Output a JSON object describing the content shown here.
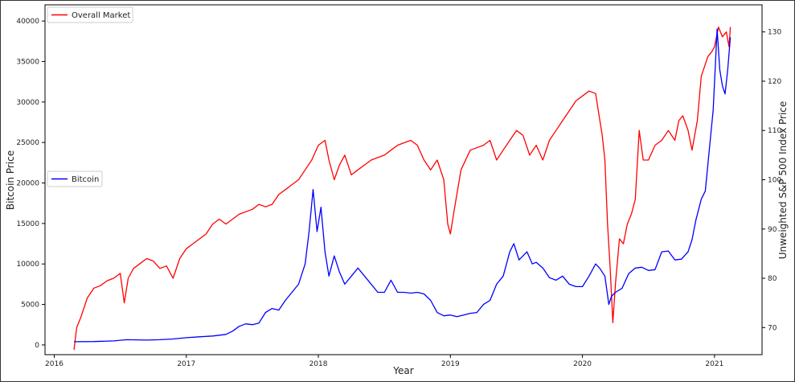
{
  "chart_data": {
    "type": "line",
    "title": "",
    "xlabel": "Year",
    "ylabel_left": "Bitcoin Price",
    "ylabel_right": "Unweighted S&P 500 Index Price",
    "xlim": [
      2015.93,
      2021.36
    ],
    "ylim_left": [
      -1200,
      42000
    ],
    "ylim_right": [
      64.5,
      135.5
    ],
    "x_ticks": [
      2016,
      2017,
      2018,
      2019,
      2020,
      2021
    ],
    "x_tick_labels": [
      "2016",
      "2017",
      "2018",
      "2019",
      "2020",
      "2021"
    ],
    "y_left_ticks": [
      0,
      5000,
      10000,
      15000,
      20000,
      25000,
      30000,
      35000,
      40000
    ],
    "y_left_tick_labels": [
      "0",
      "5000",
      "10000",
      "15000",
      "20000",
      "25000",
      "30000",
      "35000",
      "40000"
    ],
    "y_right_ticks": [
      70,
      80,
      90,
      100,
      110,
      120,
      130
    ],
    "y_right_tick_labels": [
      "70",
      "80",
      "90",
      "100",
      "110",
      "120",
      "130"
    ],
    "grid": false,
    "series": [
      {
        "name": "Overall Market",
        "axis": "right",
        "color": "#ff0000",
        "points": [
          [
            2016.15,
            65.5
          ],
          [
            2016.17,
            70
          ],
          [
            2016.2,
            72
          ],
          [
            2016.25,
            76
          ],
          [
            2016.3,
            78
          ],
          [
            2016.35,
            78.5
          ],
          [
            2016.4,
            79.5
          ],
          [
            2016.45,
            80
          ],
          [
            2016.5,
            81
          ],
          [
            2016.53,
            75
          ],
          [
            2016.56,
            80
          ],
          [
            2016.6,
            82
          ],
          [
            2016.65,
            83
          ],
          [
            2016.7,
            84
          ],
          [
            2016.75,
            83.5
          ],
          [
            2016.8,
            82
          ],
          [
            2016.85,
            82.5
          ],
          [
            2016.9,
            80
          ],
          [
            2016.95,
            84
          ],
          [
            2017.0,
            86
          ],
          [
            2017.05,
            87
          ],
          [
            2017.1,
            88
          ],
          [
            2017.15,
            89
          ],
          [
            2017.2,
            91
          ],
          [
            2017.25,
            92
          ],
          [
            2017.3,
            91
          ],
          [
            2017.35,
            92
          ],
          [
            2017.4,
            93
          ],
          [
            2017.45,
            93.5
          ],
          [
            2017.5,
            94
          ],
          [
            2017.55,
            95
          ],
          [
            2017.6,
            94.5
          ],
          [
            2017.65,
            95
          ],
          [
            2017.7,
            97
          ],
          [
            2017.75,
            98
          ],
          [
            2017.8,
            99
          ],
          [
            2017.85,
            100
          ],
          [
            2017.9,
            102
          ],
          [
            2017.95,
            104
          ],
          [
            2018.0,
            107
          ],
          [
            2018.05,
            108
          ],
          [
            2018.08,
            104
          ],
          [
            2018.12,
            100
          ],
          [
            2018.16,
            103
          ],
          [
            2018.2,
            105
          ],
          [
            2018.25,
            101
          ],
          [
            2018.3,
            102
          ],
          [
            2018.35,
            103
          ],
          [
            2018.4,
            104
          ],
          [
            2018.45,
            104.5
          ],
          [
            2018.5,
            105
          ],
          [
            2018.55,
            106
          ],
          [
            2018.6,
            107
          ],
          [
            2018.65,
            107.5
          ],
          [
            2018.7,
            108
          ],
          [
            2018.75,
            107
          ],
          [
            2018.8,
            104
          ],
          [
            2018.85,
            102
          ],
          [
            2018.9,
            104
          ],
          [
            2018.95,
            100
          ],
          [
            2018.98,
            91
          ],
          [
            2019.0,
            89
          ],
          [
            2019.03,
            94
          ],
          [
            2019.08,
            102
          ],
          [
            2019.15,
            106
          ],
          [
            2019.2,
            106.5
          ],
          [
            2019.25,
            107
          ],
          [
            2019.3,
            108
          ],
          [
            2019.35,
            104
          ],
          [
            2019.4,
            106
          ],
          [
            2019.45,
            108
          ],
          [
            2019.5,
            110
          ],
          [
            2019.55,
            109
          ],
          [
            2019.6,
            105
          ],
          [
            2019.65,
            107
          ],
          [
            2019.7,
            104
          ],
          [
            2019.75,
            108
          ],
          [
            2019.8,
            110
          ],
          [
            2019.85,
            112
          ],
          [
            2019.9,
            114
          ],
          [
            2019.95,
            116
          ],
          [
            2020.0,
            117
          ],
          [
            2020.05,
            118
          ],
          [
            2020.1,
            117.5
          ],
          [
            2020.12,
            114
          ],
          [
            2020.15,
            109
          ],
          [
            2020.17,
            104
          ],
          [
            2020.19,
            91
          ],
          [
            2020.21,
            82
          ],
          [
            2020.23,
            71
          ],
          [
            2020.25,
            79
          ],
          [
            2020.28,
            88
          ],
          [
            2020.31,
            87
          ],
          [
            2020.34,
            91
          ],
          [
            2020.37,
            93
          ],
          [
            2020.4,
            96
          ],
          [
            2020.43,
            110
          ],
          [
            2020.46,
            104
          ],
          [
            2020.5,
            104
          ],
          [
            2020.55,
            107
          ],
          [
            2020.6,
            108
          ],
          [
            2020.65,
            110
          ],
          [
            2020.7,
            108
          ],
          [
            2020.73,
            112
          ],
          [
            2020.76,
            113
          ],
          [
            2020.8,
            110
          ],
          [
            2020.83,
            106
          ],
          [
            2020.87,
            112
          ],
          [
            2020.9,
            121
          ],
          [
            2020.95,
            125
          ],
          [
            2020.98,
            126
          ],
          [
            2021.0,
            127
          ],
          [
            2021.03,
            131
          ],
          [
            2021.06,
            129
          ],
          [
            2021.09,
            130
          ],
          [
            2021.11,
            127
          ],
          [
            2021.12,
            131
          ]
        ]
      },
      {
        "name": "Bitcoin",
        "axis": "left",
        "color": "#0000ff",
        "points": [
          [
            2016.15,
            400
          ],
          [
            2016.3,
            420
          ],
          [
            2016.45,
            500
          ],
          [
            2016.55,
            650
          ],
          [
            2016.7,
            600
          ],
          [
            2016.8,
            650
          ],
          [
            2016.9,
            740
          ],
          [
            2017.0,
            900
          ],
          [
            2017.1,
            1000
          ],
          [
            2017.2,
            1100
          ],
          [
            2017.3,
            1300
          ],
          [
            2017.35,
            1700
          ],
          [
            2017.4,
            2300
          ],
          [
            2017.45,
            2600
          ],
          [
            2017.5,
            2500
          ],
          [
            2017.55,
            2700
          ],
          [
            2017.6,
            4000
          ],
          [
            2017.65,
            4500
          ],
          [
            2017.7,
            4300
          ],
          [
            2017.75,
            5500
          ],
          [
            2017.8,
            6500
          ],
          [
            2017.85,
            7500
          ],
          [
            2017.9,
            10000
          ],
          [
            2017.93,
            14000
          ],
          [
            2017.96,
            19200
          ],
          [
            2017.99,
            14000
          ],
          [
            2018.02,
            17000
          ],
          [
            2018.05,
            11500
          ],
          [
            2018.08,
            8500
          ],
          [
            2018.12,
            11000
          ],
          [
            2018.16,
            9000
          ],
          [
            2018.2,
            7500
          ],
          [
            2018.25,
            8500
          ],
          [
            2018.3,
            9500
          ],
          [
            2018.35,
            8500
          ],
          [
            2018.4,
            7500
          ],
          [
            2018.45,
            6500
          ],
          [
            2018.5,
            6500
          ],
          [
            2018.55,
            8000
          ],
          [
            2018.6,
            6500
          ],
          [
            2018.65,
            6500
          ],
          [
            2018.7,
            6400
          ],
          [
            2018.75,
            6500
          ],
          [
            2018.8,
            6300
          ],
          [
            2018.85,
            5500
          ],
          [
            2018.9,
            4000
          ],
          [
            2018.95,
            3600
          ],
          [
            2019.0,
            3700
          ],
          [
            2019.05,
            3500
          ],
          [
            2019.1,
            3700
          ],
          [
            2019.15,
            3900
          ],
          [
            2019.2,
            4000
          ],
          [
            2019.25,
            5000
          ],
          [
            2019.3,
            5500
          ],
          [
            2019.35,
            7500
          ],
          [
            2019.4,
            8500
          ],
          [
            2019.45,
            11500
          ],
          [
            2019.48,
            12500
          ],
          [
            2019.52,
            10500
          ],
          [
            2019.58,
            11500
          ],
          [
            2019.62,
            10000
          ],
          [
            2019.65,
            10200
          ],
          [
            2019.7,
            9500
          ],
          [
            2019.75,
            8300
          ],
          [
            2019.8,
            8000
          ],
          [
            2019.85,
            8500
          ],
          [
            2019.9,
            7500
          ],
          [
            2019.95,
            7200
          ],
          [
            2020.0,
            7200
          ],
          [
            2020.05,
            8500
          ],
          [
            2020.1,
            10000
          ],
          [
            2020.13,
            9500
          ],
          [
            2020.17,
            8500
          ],
          [
            2020.2,
            5000
          ],
          [
            2020.22,
            6000
          ],
          [
            2020.25,
            6500
          ],
          [
            2020.3,
            7000
          ],
          [
            2020.35,
            8800
          ],
          [
            2020.4,
            9500
          ],
          [
            2020.45,
            9600
          ],
          [
            2020.5,
            9200
          ],
          [
            2020.55,
            9300
          ],
          [
            2020.6,
            11500
          ],
          [
            2020.65,
            11600
          ],
          [
            2020.7,
            10500
          ],
          [
            2020.75,
            10600
          ],
          [
            2020.8,
            11500
          ],
          [
            2020.83,
            13000
          ],
          [
            2020.86,
            15500
          ],
          [
            2020.9,
            18000
          ],
          [
            2020.93,
            19000
          ],
          [
            2020.96,
            24000
          ],
          [
            2020.99,
            29000
          ],
          [
            2021.02,
            39000
          ],
          [
            2021.04,
            34000
          ],
          [
            2021.06,
            32000
          ],
          [
            2021.08,
            31000
          ],
          [
            2021.1,
            34000
          ],
          [
            2021.12,
            38000
          ]
        ]
      }
    ]
  },
  "legend_top": {
    "label": "Overall Market",
    "color": "#ff0000"
  },
  "legend_mid": {
    "label": "Bitcoin",
    "color": "#0000ff"
  }
}
